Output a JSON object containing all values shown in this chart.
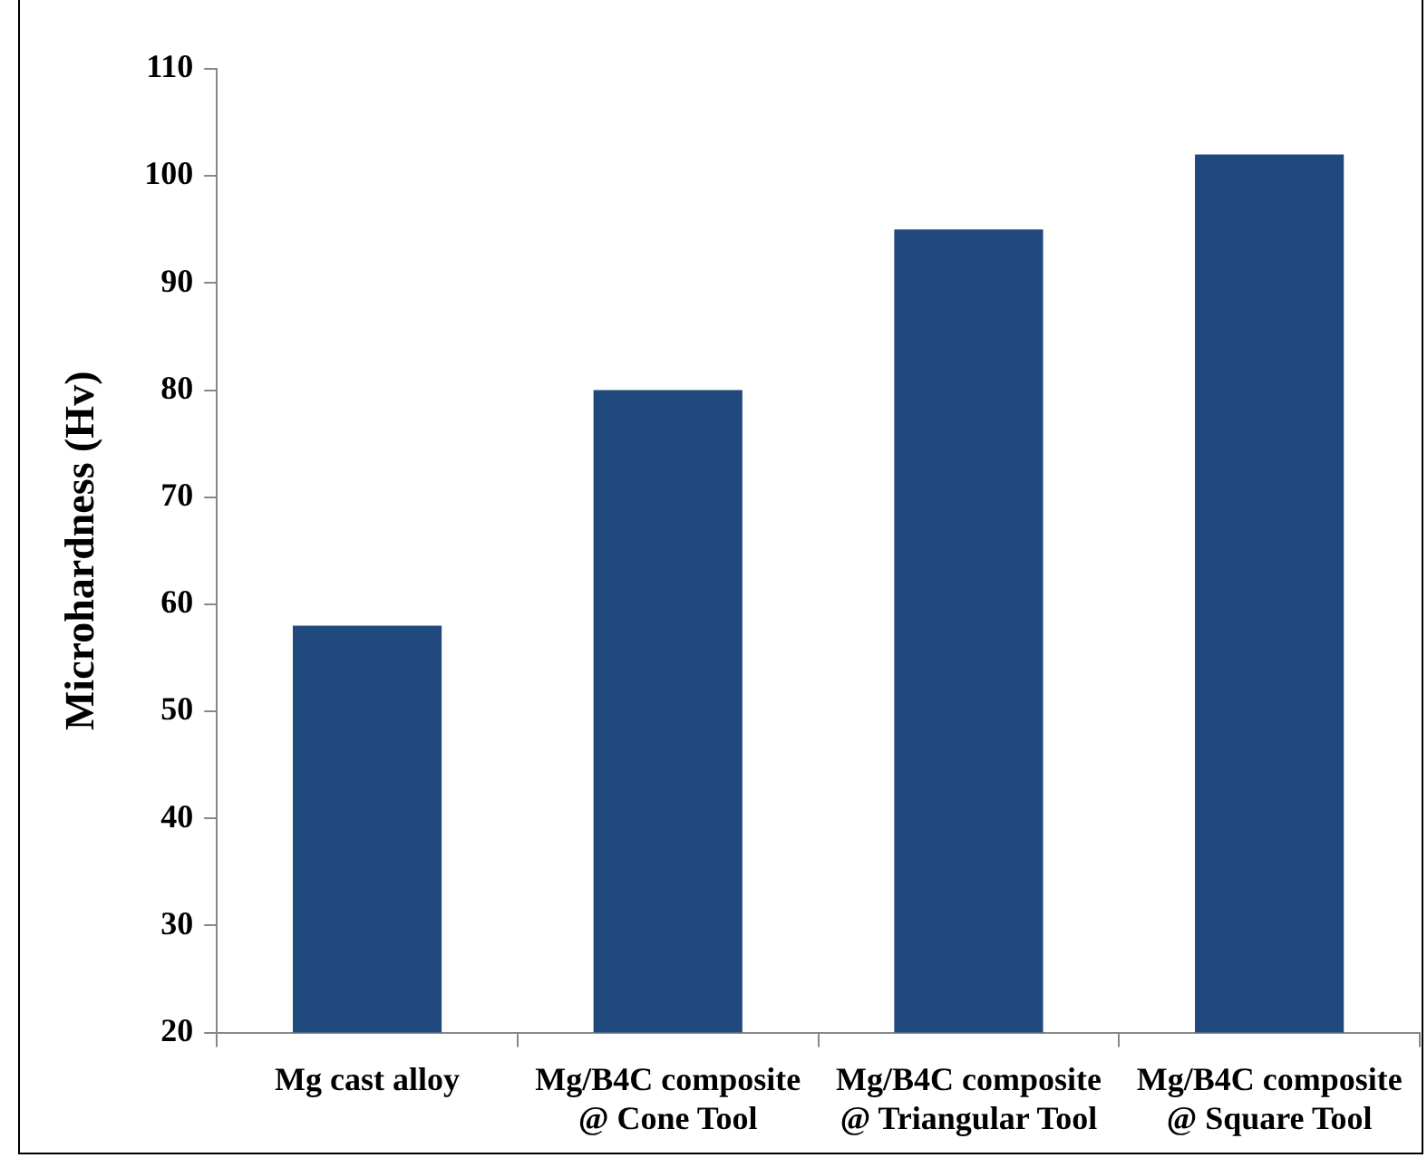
{
  "chart_data": {
    "type": "bar",
    "ylabel": "Microhardness (Hv)",
    "categories": [
      "Mg cast alloy",
      "Mg/B4C composite @ Cone Tool",
      "Mg/B4C composite @ Triangular Tool",
      "Mg/B4C composite @ Square Tool"
    ],
    "values": [
      58,
      80,
      95,
      102
    ],
    "color": "#1f497d",
    "ylim": [
      20,
      110
    ],
    "yticks": [
      20,
      30,
      40,
      50,
      60,
      70,
      80,
      90,
      100,
      110
    ],
    "grid": false,
    "legend": false
  }
}
